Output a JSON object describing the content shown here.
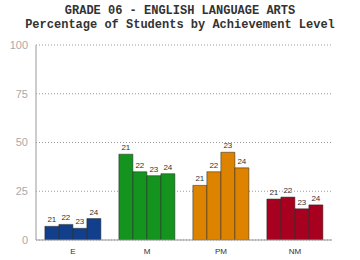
{
  "chart_data": {
    "type": "bar",
    "title": "GRADE 06 - ENGLISH LANGUAGE ARTS",
    "subtitle": "Percentage of Students by Achievement Level",
    "categories": [
      "E",
      "M",
      "PM",
      "NM"
    ],
    "colors": [
      "#123f8c",
      "#14931f",
      "#dd8300",
      "#a8001f"
    ],
    "series": [
      {
        "name": "21",
        "values": [
          7,
          44,
          28,
          21
        ]
      },
      {
        "name": "22",
        "values": [
          8,
          35,
          35,
          22
        ]
      },
      {
        "name": "23",
        "values": [
          6,
          33,
          45,
          16
        ]
      },
      {
        "name": "24",
        "values": [
          11,
          34,
          37,
          18
        ]
      }
    ],
    "ylim": [
      0,
      100
    ],
    "yticks": [
      0,
      25,
      50,
      75,
      100
    ],
    "grid": true
  }
}
